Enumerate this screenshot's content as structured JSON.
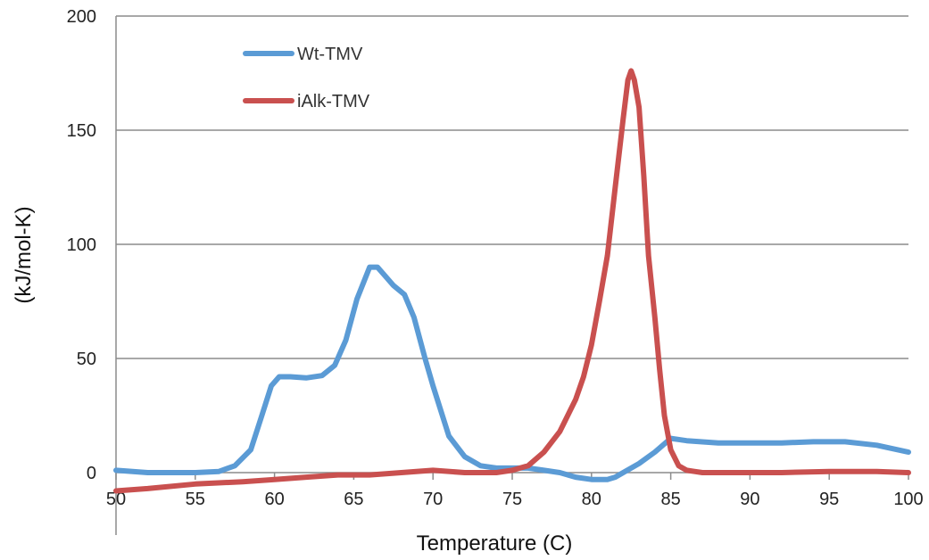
{
  "chart_data": {
    "type": "line",
    "title": "",
    "xlabel": "Temperature (C)",
    "ylabel": "(kJ/mol-K)",
    "xlim": [
      50,
      100
    ],
    "ylim": [
      0,
      200
    ],
    "x_ticks": [
      50,
      55,
      60,
      65,
      70,
      75,
      80,
      85,
      90,
      95,
      100
    ],
    "y_ticks": [
      0,
      50,
      100,
      150,
      200
    ],
    "grid": "horizontal",
    "legend": "top-left",
    "series": [
      {
        "name": "Wt-TMV",
        "color": "#5b9bd5",
        "x": [
          50,
          52,
          55,
          56.5,
          57.5,
          58.5,
          59.2,
          59.8,
          60.3,
          61,
          62,
          63,
          63.8,
          64.5,
          65.2,
          66,
          66.5,
          67,
          67.5,
          68.2,
          68.8,
          69.5,
          70,
          71,
          72,
          73,
          74,
          75,
          76,
          77,
          78,
          79,
          80,
          80.5,
          81,
          81.5,
          82,
          83,
          84,
          85,
          86,
          88,
          90,
          92,
          94,
          96,
          98,
          100
        ],
        "y": [
          1,
          0,
          0,
          0.5,
          3,
          10,
          25,
          38,
          42,
          42,
          41.5,
          42.5,
          47,
          58,
          76,
          90,
          90,
          86,
          82,
          78,
          68,
          50,
          38,
          16,
          7,
          3,
          2,
          2,
          2,
          1,
          0,
          -2,
          -3,
          -3,
          -3,
          -2,
          0,
          4,
          9,
          15,
          14,
          13,
          13,
          13,
          13.5,
          13.5,
          12,
          9
        ]
      },
      {
        "name": "iAlk-TMV",
        "color": "#c9504f",
        "x": [
          50,
          52,
          55,
          58,
          60,
          62,
          64,
          66,
          68,
          70,
          72,
          74,
          75,
          76,
          77,
          78,
          79,
          79.5,
          80,
          80.5,
          81,
          81.5,
          82,
          82.3,
          82.5,
          82.7,
          83,
          83.3,
          83.6,
          84,
          84.3,
          84.6,
          85,
          85.5,
          86,
          86.5,
          87,
          88,
          90,
          92,
          95,
          98,
          100
        ],
        "y": [
          -8,
          -7,
          -5,
          -4,
          -3,
          -2,
          -1,
          -1,
          0,
          1,
          0,
          0,
          1,
          3,
          9,
          18,
          32,
          42,
          56,
          75,
          95,
          125,
          155,
          172,
          176,
          172,
          160,
          130,
          95,
          68,
          45,
          25,
          10,
          3,
          1,
          0.5,
          0,
          0,
          0,
          0,
          0.5,
          0.5,
          0
        ]
      }
    ]
  }
}
